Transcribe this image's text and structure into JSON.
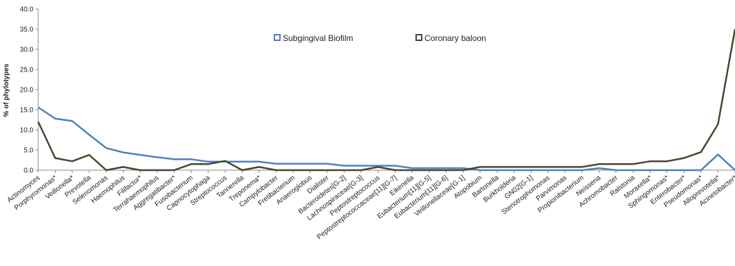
{
  "chart_data": {
    "type": "line",
    "ylabel": "% of phylotypes",
    "ylim": [
      0,
      40
    ],
    "yticks": [
      "0.0",
      "5.0",
      "10.0",
      "15.0",
      "20.0",
      "25.0",
      "30.0",
      "35.0",
      "40.0"
    ],
    "grid": false,
    "legend_placement": "top-center",
    "categories": [
      "Actinomyces",
      "Porphyromonas*",
      "Veillonella*",
      "Prevotella",
      "Selenomonas",
      "Haemophilus",
      "Filifactor*",
      "Terrahaemophilus",
      "Aggregatibacter*",
      "Fusobacterium",
      "Capnocytophaga",
      "Streptococcus",
      "Tannerella",
      "Treponema*",
      "Campylobacter",
      "Fretibacterium",
      "Anaeroglobus",
      "Dialister",
      "Bacteroidetes[G-2]",
      "Lachnospiraceae[G-3]",
      "Peptostreptococcus",
      "Peptostreptococcaceae[11][G-7]",
      "Eikenella",
      "Eubacterium[11][G-5]",
      "Eubacterium[11][G-6]",
      "Veillonellaceae[G-1]",
      "Atopobium",
      "Bartonella",
      "Burkholderia",
      "GN02[G-1]",
      "Stenotrophomonas",
      "Parvimonas",
      "Propionibacterium",
      "Neisseria",
      "Achromobacter",
      "Ralstonia",
      "Moraxella*",
      "Sphingomonas*",
      "Enterobacter*",
      "Pseudomonas*",
      "Alloprevotella*",
      "Acinetobacter*"
    ],
    "series": [
      {
        "name": "Subgingival Biofilm",
        "color": "#4f81bd",
        "values": [
          15.6,
          12.8,
          12.2,
          8.8,
          5.5,
          4.4,
          3.8,
          3.2,
          2.7,
          2.7,
          2.1,
          2.1,
          2.1,
          2.1,
          1.6,
          1.6,
          1.6,
          1.6,
          1.1,
          1.1,
          1.1,
          1.1,
          0.5,
          0.5,
          0.5,
          0.5,
          0.0,
          0.0,
          0.0,
          0.0,
          0.0,
          0.0,
          0.0,
          0.5,
          0.0,
          0.0,
          0.0,
          0.0,
          0.0,
          0.0,
          3.9,
          0.0
        ]
      },
      {
        "name": "Coronary baloon",
        "color": "#4a4530",
        "values": [
          12.0,
          3.0,
          2.2,
          3.8,
          0.0,
          0.8,
          0.0,
          0.0,
          0.0,
          1.5,
          1.5,
          2.3,
          0.0,
          0.8,
          0.0,
          0.0,
          0.0,
          0.0,
          0.0,
          0.0,
          0.8,
          0.0,
          0.0,
          0.0,
          0.0,
          0.0,
          0.8,
          0.8,
          0.8,
          0.8,
          0.8,
          0.8,
          0.8,
          1.5,
          1.5,
          1.5,
          2.2,
          2.2,
          3.0,
          4.5,
          11.4,
          35.0
        ]
      }
    ]
  }
}
